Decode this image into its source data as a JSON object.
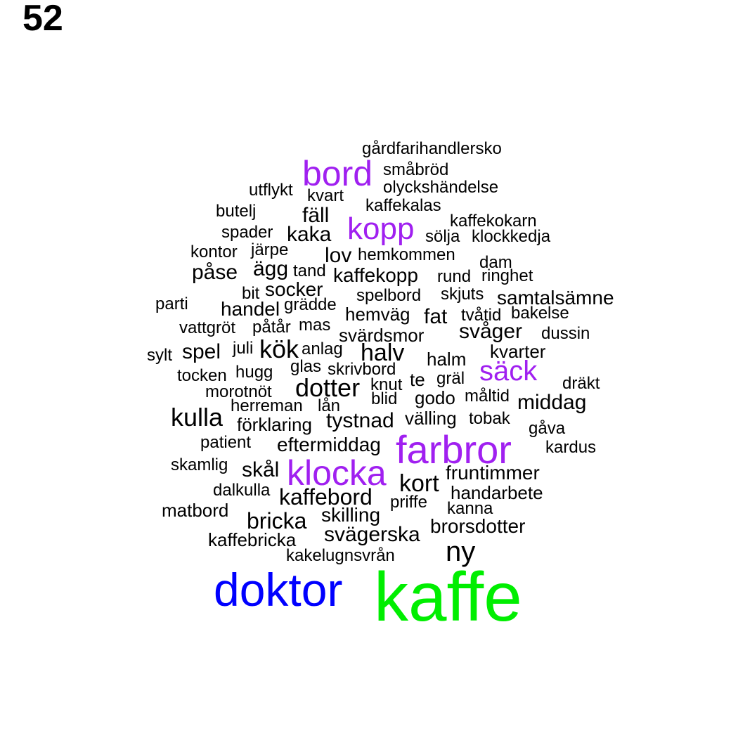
{
  "panel_number": "52",
  "colors": {
    "level1": "#00ee00",
    "level2": "#0000ff",
    "level3": "#a020f0",
    "default": "#000000"
  },
  "words": [
    {
      "text": "kaffe",
      "level": "level1"
    },
    {
      "text": "doktor",
      "level": "level2"
    },
    {
      "text": "farbror",
      "level": "level3"
    },
    {
      "text": "klocka",
      "level": "level3"
    },
    {
      "text": "bord",
      "level": "level3"
    },
    {
      "text": "kopp",
      "level": "level3"
    },
    {
      "text": "säck",
      "level": "level3"
    },
    {
      "text": "gårdfarihandlersko",
      "level": "default"
    },
    {
      "text": "småbröd",
      "level": "default"
    },
    {
      "text": "olyckshändelse",
      "level": "default"
    },
    {
      "text": "utflykt",
      "level": "default"
    },
    {
      "text": "kvart",
      "level": "default"
    },
    {
      "text": "kaffekalas",
      "level": "default"
    },
    {
      "text": "butelj",
      "level": "default"
    },
    {
      "text": "fäll",
      "level": "default"
    },
    {
      "text": "kaffekokarn",
      "level": "default"
    },
    {
      "text": "spader",
      "level": "default"
    },
    {
      "text": "kaka",
      "level": "default"
    },
    {
      "text": "sölja",
      "level": "default"
    },
    {
      "text": "klockkedja",
      "level": "default"
    },
    {
      "text": "kontor",
      "level": "default"
    },
    {
      "text": "järpe",
      "level": "default"
    },
    {
      "text": "lov",
      "level": "default"
    },
    {
      "text": "hemkommen",
      "level": "default"
    },
    {
      "text": "dam",
      "level": "default"
    },
    {
      "text": "påse",
      "level": "default"
    },
    {
      "text": "ägg",
      "level": "default"
    },
    {
      "text": "tand",
      "level": "default"
    },
    {
      "text": "kaffekopp",
      "level": "default"
    },
    {
      "text": "rund",
      "level": "default"
    },
    {
      "text": "ringhet",
      "level": "default"
    },
    {
      "text": "bit",
      "level": "default"
    },
    {
      "text": "socker",
      "level": "default"
    },
    {
      "text": "spelbord",
      "level": "default"
    },
    {
      "text": "skjuts",
      "level": "default"
    },
    {
      "text": "samtalsämne",
      "level": "default"
    },
    {
      "text": "parti",
      "level": "default"
    },
    {
      "text": "handel",
      "level": "default"
    },
    {
      "text": "grädde",
      "level": "default"
    },
    {
      "text": "hemväg",
      "level": "default"
    },
    {
      "text": "fat",
      "level": "default"
    },
    {
      "text": "tvåtid",
      "level": "default"
    },
    {
      "text": "bakelse",
      "level": "default"
    },
    {
      "text": "vattgröt",
      "level": "default"
    },
    {
      "text": "påtår",
      "level": "default"
    },
    {
      "text": "mas",
      "level": "default"
    },
    {
      "text": "svärdsmor",
      "level": "default"
    },
    {
      "text": "svåger",
      "level": "default"
    },
    {
      "text": "dussin",
      "level": "default"
    },
    {
      "text": "sylt",
      "level": "default"
    },
    {
      "text": "spel",
      "level": "default"
    },
    {
      "text": "juli",
      "level": "default"
    },
    {
      "text": "kök",
      "level": "default"
    },
    {
      "text": "anlag",
      "level": "default"
    },
    {
      "text": "halv",
      "level": "default"
    },
    {
      "text": "kvarter",
      "level": "default"
    },
    {
      "text": "halm",
      "level": "default"
    },
    {
      "text": "glas",
      "level": "default"
    },
    {
      "text": "skrivbord",
      "level": "default"
    },
    {
      "text": "tocken",
      "level": "default"
    },
    {
      "text": "hugg",
      "level": "default"
    },
    {
      "text": "dotter",
      "level": "default"
    },
    {
      "text": "knut",
      "level": "default"
    },
    {
      "text": "te",
      "level": "default"
    },
    {
      "text": "gräl",
      "level": "default"
    },
    {
      "text": "dräkt",
      "level": "default"
    },
    {
      "text": "morotnöt",
      "level": "default"
    },
    {
      "text": "blid",
      "level": "default"
    },
    {
      "text": "godo",
      "level": "default"
    },
    {
      "text": "måltid",
      "level": "default"
    },
    {
      "text": "middag",
      "level": "default"
    },
    {
      "text": "herreman",
      "level": "default"
    },
    {
      "text": "lån",
      "level": "default"
    },
    {
      "text": "kulla",
      "level": "default"
    },
    {
      "text": "tystnad",
      "level": "default"
    },
    {
      "text": "välling",
      "level": "default"
    },
    {
      "text": "tobak",
      "level": "default"
    },
    {
      "text": "förklaring",
      "level": "default"
    },
    {
      "text": "gåva",
      "level": "default"
    },
    {
      "text": "patient",
      "level": "default"
    },
    {
      "text": "eftermiddag",
      "level": "default"
    },
    {
      "text": "kardus",
      "level": "default"
    },
    {
      "text": "skamlig",
      "level": "default"
    },
    {
      "text": "skål",
      "level": "default"
    },
    {
      "text": "fruntimmer",
      "level": "default"
    },
    {
      "text": "kort",
      "level": "default"
    },
    {
      "text": "dalkulla",
      "level": "default"
    },
    {
      "text": "handarbete",
      "level": "default"
    },
    {
      "text": "kaffebord",
      "level": "default"
    },
    {
      "text": "matbord",
      "level": "default"
    },
    {
      "text": "priffe",
      "level": "default"
    },
    {
      "text": "kanna",
      "level": "default"
    },
    {
      "text": "skilling",
      "level": "default"
    },
    {
      "text": "bricka",
      "level": "default"
    },
    {
      "text": "brorsdotter",
      "level": "default"
    },
    {
      "text": "svägerska",
      "level": "default"
    },
    {
      "text": "kaffebricka",
      "level": "default"
    },
    {
      "text": "ny",
      "level": "default"
    },
    {
      "text": "kakelugnsvrån",
      "level": "default"
    }
  ]
}
